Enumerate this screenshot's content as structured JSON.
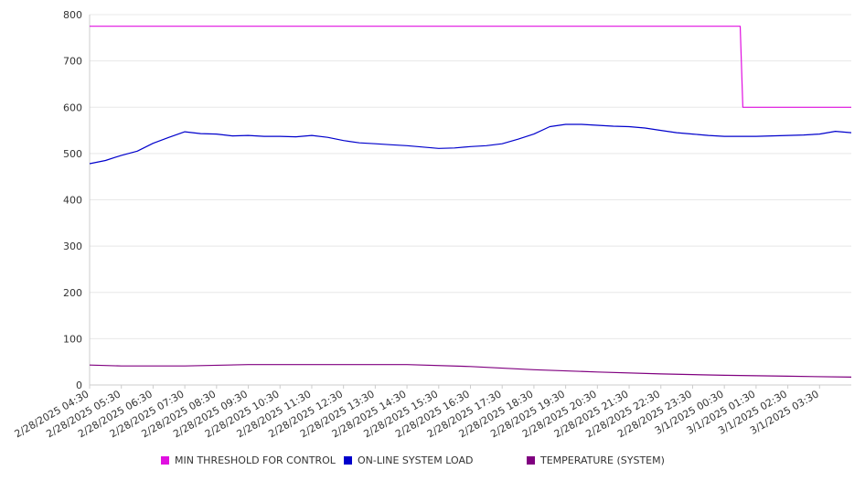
{
  "chart_data": {
    "type": "line",
    "title": "",
    "xlabel": "",
    "ylabel": "",
    "ylim": [
      0,
      800
    ],
    "yticks": [
      0,
      100,
      200,
      300,
      400,
      500,
      600,
      700,
      800
    ],
    "grid": true,
    "legend_position": "bottom",
    "x_tick_labels": [
      "2/28/2025 04:30",
      "2/28/2025 05:30",
      "2/28/2025 06:30",
      "2/28/2025 07:30",
      "2/28/2025 08:30",
      "2/28/2025 09:30",
      "2/28/2025 10:30",
      "2/28/2025 11:30",
      "2/28/2025 12:30",
      "2/28/2025 13:30",
      "2/28/2025 14:30",
      "2/28/2025 15:30",
      "2/28/2025 16:30",
      "2/28/2025 17:30",
      "2/28/2025 18:30",
      "2/28/2025 19:30",
      "2/28/2025 20:30",
      "2/28/2025 21:30",
      "2/28/2025 22:30",
      "2/28/2025 23:30",
      "3/1/2025 00:30",
      "3/1/2025 01:30",
      "3/1/2025 02:30",
      "3/1/2025 03:30"
    ],
    "x_range": [
      "2/28/2025 04:30",
      "3/1/2025 04:30"
    ],
    "series": [
      {
        "name": "MIN THRESHOLD FOR CONTROL",
        "color": "#e010e0",
        "points": [
          [
            "2/28/2025 04:30",
            775
          ],
          [
            "3/1/2025 01:00",
            775
          ],
          [
            "3/1/2025 01:05",
            600
          ],
          [
            "3/1/2025 04:30",
            600
          ]
        ]
      },
      {
        "name": "ON-LINE SYSTEM LOAD",
        "color": "#0000cc",
        "points": [
          [
            "2/28/2025 04:30",
            478
          ],
          [
            "2/28/2025 05:00",
            485
          ],
          [
            "2/28/2025 05:30",
            496
          ],
          [
            "2/28/2025 06:00",
            505
          ],
          [
            "2/28/2025 06:30",
            522
          ],
          [
            "2/28/2025 07:00",
            535
          ],
          [
            "2/28/2025 07:30",
            547
          ],
          [
            "2/28/2025 08:00",
            543
          ],
          [
            "2/28/2025 08:30",
            542
          ],
          [
            "2/28/2025 09:00",
            538
          ],
          [
            "2/28/2025 09:30",
            539
          ],
          [
            "2/28/2025 10:00",
            537
          ],
          [
            "2/28/2025 10:30",
            537
          ],
          [
            "2/28/2025 11:00",
            536
          ],
          [
            "2/28/2025 11:30",
            539
          ],
          [
            "2/28/2025 12:00",
            535
          ],
          [
            "2/28/2025 12:30",
            528
          ],
          [
            "2/28/2025 13:00",
            523
          ],
          [
            "2/28/2025 13:30",
            521
          ],
          [
            "2/28/2025 14:00",
            519
          ],
          [
            "2/28/2025 14:30",
            517
          ],
          [
            "2/28/2025 15:00",
            514
          ],
          [
            "2/28/2025 15:30",
            511
          ],
          [
            "2/28/2025 16:00",
            512
          ],
          [
            "2/28/2025 16:30",
            515
          ],
          [
            "2/28/2025 17:00",
            517
          ],
          [
            "2/28/2025 17:30",
            521
          ],
          [
            "2/28/2025 18:00",
            531
          ],
          [
            "2/28/2025 18:30",
            542
          ],
          [
            "2/28/2025 19:00",
            558
          ],
          [
            "2/28/2025 19:30",
            563
          ],
          [
            "2/28/2025 20:00",
            563
          ],
          [
            "2/28/2025 20:30",
            561
          ],
          [
            "2/28/2025 21:00",
            559
          ],
          [
            "2/28/2025 21:30",
            558
          ],
          [
            "2/28/2025 22:00",
            555
          ],
          [
            "2/28/2025 22:30",
            550
          ],
          [
            "2/28/2025 23:00",
            545
          ],
          [
            "2/28/2025 23:30",
            542
          ],
          [
            "3/1/2025 00:00",
            539
          ],
          [
            "3/1/2025 00:30",
            537
          ],
          [
            "3/1/2025 01:00",
            537
          ],
          [
            "3/1/2025 01:30",
            537
          ],
          [
            "3/1/2025 02:00",
            538
          ],
          [
            "3/1/2025 02:30",
            539
          ],
          [
            "3/1/2025 03:00",
            540
          ],
          [
            "3/1/2025 03:30",
            542
          ],
          [
            "3/1/2025 04:00",
            548
          ],
          [
            "3/1/2025 04:30",
            545
          ]
        ]
      },
      {
        "name": "TEMPERATURE (SYSTEM)",
        "color": "#800080",
        "points": [
          [
            "2/28/2025 04:30",
            43
          ],
          [
            "2/28/2025 05:30",
            41
          ],
          [
            "2/28/2025 07:30",
            41
          ],
          [
            "2/28/2025 09:30",
            44
          ],
          [
            "2/28/2025 14:30",
            44
          ],
          [
            "2/28/2025 16:30",
            40
          ],
          [
            "2/28/2025 18:30",
            33
          ],
          [
            "2/28/2025 20:30",
            28
          ],
          [
            "2/28/2025 22:30",
            24
          ],
          [
            "3/1/2025 00:30",
            21
          ],
          [
            "3/1/2025 02:30",
            19
          ],
          [
            "3/1/2025 04:30",
            17
          ]
        ]
      }
    ]
  }
}
